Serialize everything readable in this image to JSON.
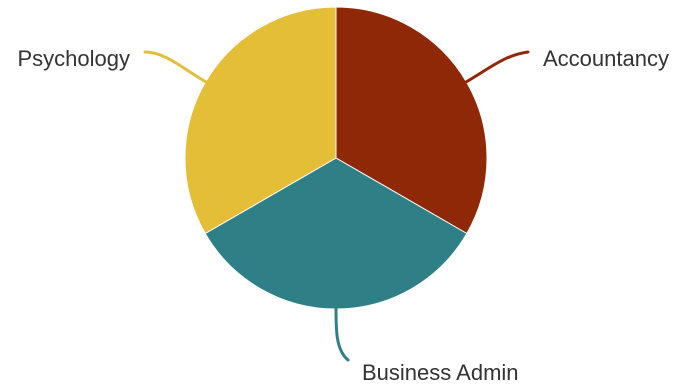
{
  "chart_data": {
    "type": "pie",
    "start_angle_deg": 0,
    "direction": "clockwise",
    "slices": [
      {
        "label": "Accountancy",
        "value": 33.33,
        "color": "#8E2806"
      },
      {
        "label": "Business Admin",
        "value": 33.33,
        "color": "#2E7F86"
      },
      {
        "label": "Psychology",
        "value": 33.33,
        "color": "#E5BE38"
      }
    ]
  }
}
